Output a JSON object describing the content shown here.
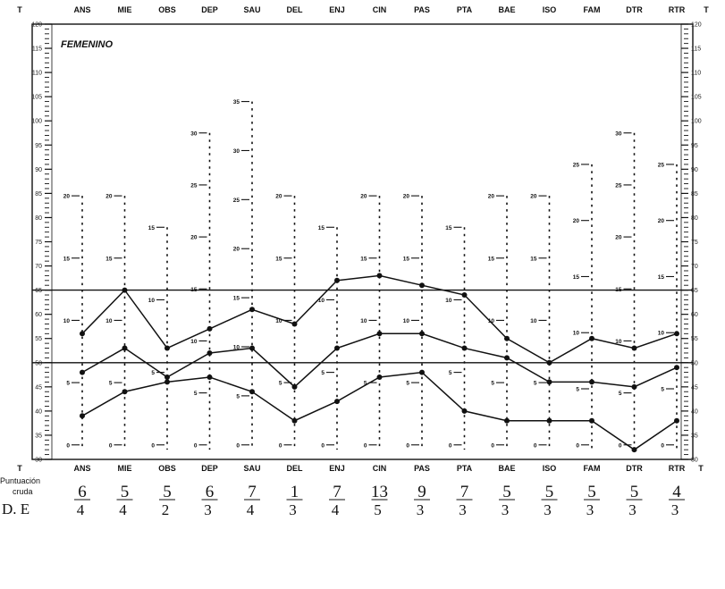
{
  "chart_data": {
    "type": "line",
    "title": "FEMENINO",
    "axis_label": "T",
    "categories": [
      "ANS",
      "MIE",
      "OBS",
      "DEP",
      "SAU",
      "DEL",
      "ENJ",
      "CIN",
      "PAS",
      "PTA",
      "BAE",
      "ISO",
      "FAM",
      "DTR",
      "RTR"
    ],
    "y_ticks": [
      30,
      35,
      40,
      45,
      50,
      55,
      60,
      65,
      70,
      75,
      80,
      85,
      90,
      95,
      100,
      105,
      110,
      115,
      120
    ],
    "ylim": [
      30,
      120
    ],
    "reference_lines": [
      50,
      65
    ],
    "series": [
      {
        "values": [
          56,
          65,
          53,
          57,
          61,
          58,
          67,
          68,
          66,
          64,
          55,
          50,
          55,
          53,
          56
        ]
      },
      {
        "values": [
          48,
          53,
          47,
          52,
          53,
          45,
          53,
          56,
          56,
          53,
          51,
          46,
          46,
          45,
          49
        ]
      },
      {
        "values": [
          39,
          44,
          46,
          47,
          44,
          38,
          42,
          47,
          48,
          40,
          38,
          38,
          38,
          32,
          38
        ]
      }
    ],
    "raw_scores": [
      "6",
      "5",
      "5",
      "6",
      "7",
      "1",
      "7",
      "13",
      "9",
      "7",
      "5",
      "5",
      "5",
      "5",
      "4"
    ],
    "de_scores": [
      "4",
      "4",
      "2",
      "3",
      "4",
      "3",
      "4",
      "5",
      "3",
      "3",
      "3",
      "3",
      "3",
      "3",
      "3"
    ],
    "row_labels": {
      "puntuacion": "Puntuación",
      "cruda": "cruda",
      "de": "D. E"
    },
    "scale_labels": [
      [
        "20",
        "15",
        "10",
        "5",
        "0"
      ],
      [
        "20",
        "15",
        "10",
        "5",
        "0"
      ],
      [
        "15",
        "10",
        "5",
        "0"
      ],
      [
        "30",
        "25",
        "20",
        "15",
        "10",
        "5",
        "0"
      ],
      [
        "35",
        "30",
        "25",
        "20",
        "15",
        "10",
        "5",
        "0"
      ],
      [
        "20",
        "15",
        "10",
        "5",
        "0"
      ],
      [
        "15",
        "10",
        "5",
        "0"
      ],
      [
        "20",
        "15",
        "10",
        "5",
        "0"
      ],
      [
        "20",
        "15",
        "10",
        "5",
        "0"
      ],
      [
        "15",
        "10",
        "5",
        "0"
      ],
      [
        "20",
        "15",
        "10",
        "5",
        "0"
      ],
      [
        "20",
        "15",
        "10",
        "5",
        "0"
      ],
      [
        "25",
        "20",
        "15",
        "10",
        "5",
        "0"
      ],
      [
        "30",
        "25",
        "20",
        "15",
        "10",
        "5",
        "0"
      ],
      [
        "25",
        "20",
        "15",
        "10",
        "5",
        "0"
      ]
    ]
  }
}
